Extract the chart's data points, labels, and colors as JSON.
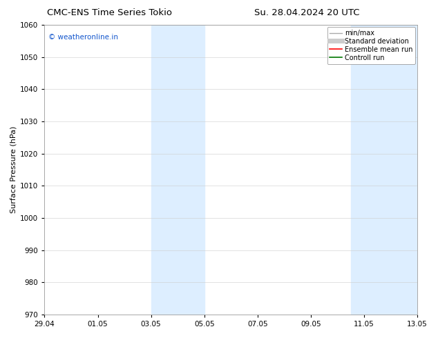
{
  "title_left": "CMC-ENS Time Series Tokio",
  "title_right": "Su. 28.04.2024 20 UTC",
  "ylabel": "Surface Pressure (hPa)",
  "ylim": [
    970,
    1060
  ],
  "yticks": [
    970,
    980,
    990,
    1000,
    1010,
    1020,
    1030,
    1040,
    1050,
    1060
  ],
  "xtick_labels": [
    "29.04",
    "01.05",
    "03.05",
    "05.05",
    "07.05",
    "09.05",
    "11.05",
    "13.05"
  ],
  "xtick_positions": [
    0,
    2,
    4,
    6,
    8,
    10,
    12,
    14
  ],
  "xmin": 0,
  "xmax": 14,
  "shaded_bands": [
    {
      "xmin": 4.0,
      "xmax": 6.0
    },
    {
      "xmin": 11.5,
      "xmax": 14.0
    }
  ],
  "shade_color": "#ddeeff",
  "watermark_text": "© weatheronline.in",
  "watermark_color": "#1155cc",
  "legend_entries": [
    {
      "label": "min/max",
      "color": "#aaaaaa",
      "lw": 1.0
    },
    {
      "label": "Standard deviation",
      "color": "#cccccc",
      "lw": 5
    },
    {
      "label": "Ensemble mean run",
      "color": "#ff0000",
      "lw": 1.2
    },
    {
      "label": "Controll run",
      "color": "#007700",
      "lw": 1.2
    }
  ],
  "background_color": "#ffffff",
  "grid_color": "#cccccc",
  "title_fontsize": 9.5,
  "label_fontsize": 8,
  "tick_fontsize": 7.5,
  "legend_fontsize": 7.0
}
